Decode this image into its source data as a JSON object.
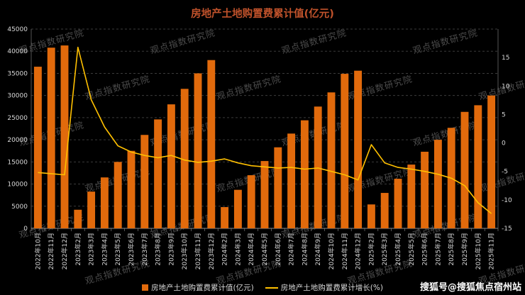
{
  "title": "房地产土地购置费累计值(亿元)",
  "title_color": "#C0522B",
  "watermark": {
    "text": "观点指数研究院"
  },
  "badge": {
    "text": "搜狐号@搜狐焦点宿州站"
  },
  "legend": [
    {
      "label": "房地产土地购置费累计值(亿元)",
      "type": "bar",
      "color": "#E16A0C"
    },
    {
      "label": "房地产土地购置费累计增长(%)",
      "type": "line",
      "color": "#FFC000"
    }
  ],
  "colors": {
    "background": "#000000",
    "bar": "#E16A0C",
    "line": "#FFC000",
    "axis_text": "#D9D9D9",
    "gridline": "#3B3B3B",
    "axis_line": "#8C8C8C"
  },
  "chart_data": {
    "type": "bar+line combo, dual axis",
    "title": "房地产土地购置费累计值(亿元)",
    "categories": [
      "2022年10月",
      "2022年11月",
      "2022年12月",
      "2023年2月",
      "2023年3月",
      "2023年4月",
      "2023年5月",
      "2023年6月",
      "2023年7月",
      "2023年8月",
      "2023年9月",
      "2023年10月",
      "2023年11月",
      "2023年12月",
      "2024年2月",
      "2024年3月",
      "2024年4月",
      "2024年5月",
      "2024年6月",
      "2024年7月",
      "2024年8月",
      "2024年9月",
      "2024年10月",
      "2024年11月",
      "2024年12月",
      "2025年2月",
      "2025年3月",
      "2025年4月",
      "2025年5月",
      "2025年6月",
      "2025年7月",
      "2025年8月",
      "2025年9月",
      "2025年10月",
      "2025年11月"
    ],
    "series": [
      {
        "name": "房地产土地购置费累计值(亿元)",
        "type": "bar",
        "axis": "left",
        "color": "#E16A0C",
        "values": [
          36500,
          40800,
          41300,
          4200,
          8300,
          11500,
          15000,
          17500,
          21100,
          24600,
          28000,
          31500,
          35000,
          38000,
          4800,
          8700,
          12000,
          15200,
          18300,
          21400,
          24400,
          27500,
          30700,
          34900,
          35600,
          5400,
          8000,
          11200,
          14400,
          17300,
          20000,
          22700,
          26300,
          27800,
          30000
        ]
      },
      {
        "name": "房地产土地购置费累计增长(%)",
        "type": "line",
        "axis": "right",
        "color": "#FFC000",
        "values": [
          -5.2,
          -5.4,
          -5.6,
          16.8,
          7.6,
          2.8,
          -0.5,
          -1.6,
          -2.2,
          -2.6,
          -2.2,
          -3.0,
          -3.4,
          -3.2,
          -2.8,
          -3.5,
          -4.0,
          -4.2,
          -4.4,
          -4.3,
          -4.6,
          -4.4,
          -5.0,
          -5.6,
          -6.5,
          -0.3,
          -3.5,
          -4.3,
          -4.6,
          -5.0,
          -5.5,
          -6.2,
          -7.5,
          -10.5,
          -12.4
        ]
      }
    ],
    "left_axis": {
      "min": 0,
      "max": 45000,
      "tick_step": 5000,
      "tick_labels": [
        "45000",
        "40000",
        "35000",
        "30000",
        "25000",
        "20000",
        "15000",
        "10000",
        "5000",
        "0"
      ]
    },
    "right_axis": {
      "min": -15,
      "max": 20,
      "tick_step": 5,
      "shown_ticks": [
        15,
        10,
        5,
        0,
        -5,
        -10,
        -15
      ],
      "tick_labels": [
        "15",
        "10",
        "5",
        "0",
        "-5",
        "-10",
        "-15"
      ]
    },
    "grid": "horizontal dashed gridlines on",
    "legend_position": "bottom center",
    "x_label_rotation": "vertical (reads bottom to top)"
  }
}
